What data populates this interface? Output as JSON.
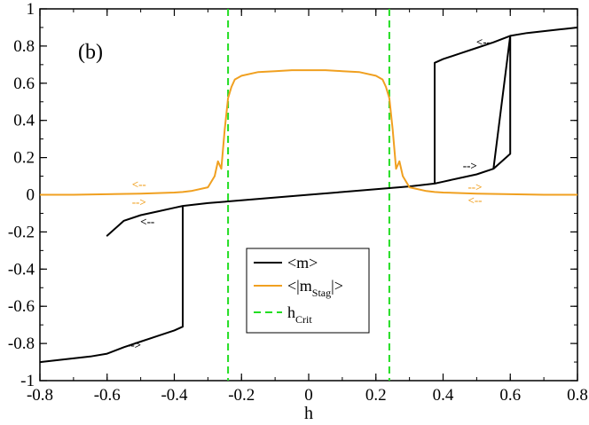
{
  "chart_data": {
    "type": "line",
    "title": "",
    "panel_label": "(b)",
    "xlabel": "h",
    "ylabel": "",
    "xlim": [
      -0.8,
      0.8
    ],
    "ylim": [
      -1,
      1
    ],
    "xticks": [
      -0.8,
      -0.6,
      -0.4,
      -0.2,
      0,
      0.2,
      0.4,
      0.6,
      0.8
    ],
    "xtick_labels": [
      "-0.8",
      "-0.6",
      "-0.4",
      "-0.2",
      "0",
      "0.2",
      "0.4",
      "0.6",
      "0.8"
    ],
    "yticks": [
      -1,
      -0.8,
      -0.6,
      -0.4,
      -0.2,
      0,
      0.2,
      0.4,
      0.6,
      0.8,
      1
    ],
    "ytick_labels": [
      "-1",
      "-0.8",
      "-0.6",
      "-0.4",
      "-0.2",
      "0",
      "0.2",
      "0.4",
      "0.6",
      "0.8",
      "1"
    ],
    "series": [
      {
        "name": "<m>",
        "color": "#000000",
        "style": "solid",
        "x": [
          -0.8,
          -0.75,
          -0.7,
          -0.65,
          -0.6,
          -0.6,
          -0.55,
          -0.5,
          -0.45,
          -0.4,
          -0.375,
          -0.375,
          -0.4,
          -0.45,
          -0.5,
          -0.55,
          -0.6,
          -0.6,
          -0.55,
          -0.5,
          -0.45,
          -0.4,
          -0.375,
          -0.3,
          -0.2,
          -0.1,
          0,
          0.1,
          0.2,
          0.3,
          0.375,
          0.4,
          0.45,
          0.5,
          0.55,
          0.6,
          0.6,
          0.55,
          0.5,
          0.45,
          0.4,
          0.375,
          0.375,
          0.4,
          0.45,
          0.5,
          0.55,
          0.6,
          0.65,
          0.7,
          0.75,
          0.8
        ],
        "y": [
          -0.9,
          -0.89,
          -0.88,
          -0.87,
          -0.855,
          -0.855,
          -0.82,
          -0.79,
          -0.76,
          -0.73,
          -0.71,
          -0.06,
          -0.07,
          -0.09,
          -0.11,
          -0.14,
          -0.22,
          -0.22,
          -0.14,
          -0.11,
          -0.09,
          -0.07,
          -0.06,
          -0.045,
          -0.03,
          -0.015,
          0,
          0.015,
          0.03,
          0.045,
          0.06,
          0.07,
          0.09,
          0.11,
          0.14,
          0.22,
          0.855,
          0.82,
          0.79,
          0.76,
          0.73,
          0.71,
          0.06,
          0.07,
          0.09,
          0.11,
          0.14,
          0.855,
          0.87,
          0.88,
          0.89,
          0.9
        ]
      },
      {
        "name": "<|m_Stag|>",
        "color": "#f0a020",
        "style": "solid",
        "x": [
          -0.8,
          -0.7,
          -0.6,
          -0.5,
          -0.4,
          -0.375,
          -0.35,
          -0.3,
          -0.28,
          -0.27,
          -0.26,
          -0.25,
          -0.24,
          -0.23,
          -0.22,
          -0.2,
          -0.15,
          -0.1,
          -0.05,
          0,
          0.05,
          0.1,
          0.15,
          0.2,
          0.22,
          0.23,
          0.24,
          0.25,
          0.26,
          0.27,
          0.28,
          0.3,
          0.35,
          0.375,
          0.4,
          0.5,
          0.6,
          0.7,
          0.8
        ],
        "y": [
          0,
          0,
          0.003,
          0.006,
          0.012,
          0.015,
          0.02,
          0.04,
          0.1,
          0.18,
          0.14,
          0.35,
          0.52,
          0.58,
          0.62,
          0.64,
          0.66,
          0.665,
          0.67,
          0.67,
          0.67,
          0.665,
          0.66,
          0.64,
          0.62,
          0.58,
          0.52,
          0.35,
          0.14,
          0.18,
          0.1,
          0.04,
          0.02,
          0.015,
          0.012,
          0.006,
          0.003,
          0,
          0
        ]
      },
      {
        "name": "h_Crit",
        "color": "#22dd22",
        "style": "dashed",
        "x_positions": [
          -0.24,
          0.24
        ]
      }
    ],
    "annotations": [
      {
        "text": "<--",
        "x": 0.52,
        "y": 0.82,
        "color": "#000000"
      },
      {
        "text": "-->",
        "x": 0.48,
        "y": 0.155,
        "color": "#000000"
      },
      {
        "text": "<--",
        "x": -0.48,
        "y": -0.145,
        "color": "#000000"
      },
      {
        "text": "-->",
        "x": -0.52,
        "y": -0.81,
        "color": "#000000"
      },
      {
        "text": "<--",
        "x": -0.505,
        "y": 0.055,
        "color": "#f0a020"
      },
      {
        "text": "-->",
        "x": -0.505,
        "y": -0.04,
        "color": "#f0a020"
      },
      {
        "text": "-->",
        "x": 0.495,
        "y": 0.04,
        "color": "#f0a020"
      },
      {
        "text": "<--",
        "x": 0.495,
        "y": -0.03,
        "color": "#f0a020"
      }
    ],
    "legend": {
      "placement": "lower-center",
      "entries": [
        {
          "label": "<m>",
          "color": "#000000",
          "dashed": false,
          "main": "<m>",
          "sub": ""
        },
        {
          "label": "<|m_Stag|>",
          "color": "#f0a020",
          "dashed": false,
          "main": "<|m",
          "sub": "Stag",
          "tail": "|>"
        },
        {
          "label": "h_Crit",
          "color": "#22dd22",
          "dashed": true,
          "main": "h",
          "sub": "Crit",
          "tail": ""
        }
      ]
    },
    "grid": false
  }
}
